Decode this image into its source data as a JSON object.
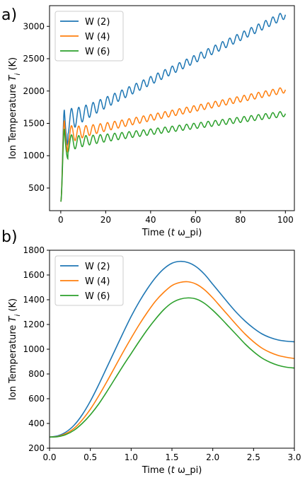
{
  "chart_data": [
    {
      "panel_label": "a)",
      "type": "line",
      "xlabel": "Time (t ω_pi)",
      "ylabel": "Ion Temperature T_i (K)",
      "xlim": [
        -5,
        104
      ],
      "ylim": [
        150,
        3320
      ],
      "xticks": [
        0,
        20,
        40,
        60,
        80,
        100
      ],
      "yticks": [
        500,
        1000,
        1500,
        2000,
        2500,
        3000
      ],
      "legend_position": "upper-left",
      "series": [
        {
          "name": "W (2)",
          "color": "#1f77b4",
          "T0": 290,
          "slope_end": 3180,
          "peak": 1710,
          "env": 1480,
          "osc": 170,
          "period": 3.2,
          "damp": 12
        },
        {
          "name": "W (4)",
          "color": "#ff7f0e",
          "T0": 290,
          "slope_end": 2020,
          "peak": 1545,
          "env": 1300,
          "osc": 130,
          "period": 3.2,
          "damp": 12
        },
        {
          "name": "W (6)",
          "color": "#2ca02c",
          "T0": 290,
          "slope_end": 1650,
          "peak": 1415,
          "env": 1180,
          "osc": 120,
          "period": 3.2,
          "damp": 12
        }
      ]
    },
    {
      "panel_label": "b)",
      "type": "line",
      "xlabel": "Time (t ω_pi)",
      "ylabel": "Ion Temperature T_i (K)",
      "xlim": [
        0,
        3.0
      ],
      "ylim": [
        200,
        1800
      ],
      "xticks": [
        0.0,
        0.5,
        1.0,
        1.5,
        2.0,
        2.5,
        3.0
      ],
      "yticks": [
        200,
        400,
        600,
        800,
        1000,
        1200,
        1400,
        1600,
        1800
      ],
      "legend_position": "upper-left",
      "series": [
        {
          "name": "W (2)",
          "color": "#1f77b4",
          "x": [
            0.0,
            0.1,
            0.2,
            0.3,
            0.4,
            0.5,
            0.6,
            0.7,
            0.8,
            0.9,
            1.0,
            1.1,
            1.2,
            1.3,
            1.4,
            1.5,
            1.6,
            1.7,
            1.8,
            1.9,
            2.0,
            2.1,
            2.2,
            2.3,
            2.4,
            2.5,
            2.6,
            2.7,
            2.8,
            2.9,
            3.0
          ],
          "y": [
            290,
            300,
            330,
            385,
            470,
            580,
            710,
            850,
            990,
            1130,
            1265,
            1385,
            1490,
            1580,
            1650,
            1695,
            1710,
            1700,
            1665,
            1605,
            1525,
            1445,
            1365,
            1290,
            1225,
            1170,
            1125,
            1095,
            1075,
            1065,
            1060
          ]
        },
        {
          "name": "W (4)",
          "color": "#ff7f0e",
          "x": [
            0.0,
            0.1,
            0.2,
            0.3,
            0.4,
            0.5,
            0.6,
            0.7,
            0.8,
            0.9,
            1.0,
            1.1,
            1.2,
            1.3,
            1.4,
            1.5,
            1.6,
            1.7,
            1.8,
            1.9,
            2.0,
            2.1,
            2.2,
            2.3,
            2.4,
            2.5,
            2.6,
            2.7,
            2.8,
            2.9,
            3.0
          ],
          "y": [
            290,
            295,
            318,
            360,
            428,
            515,
            620,
            735,
            855,
            975,
            1090,
            1200,
            1300,
            1390,
            1460,
            1515,
            1540,
            1545,
            1525,
            1480,
            1415,
            1340,
            1265,
            1190,
            1120,
            1060,
            1010,
            975,
            950,
            935,
            925
          ]
        },
        {
          "name": "W (6)",
          "color": "#2ca02c",
          "x": [
            0.0,
            0.1,
            0.2,
            0.3,
            0.4,
            0.5,
            0.6,
            0.7,
            0.8,
            0.9,
            1.0,
            1.1,
            1.2,
            1.3,
            1.4,
            1.5,
            1.6,
            1.7,
            1.8,
            1.9,
            2.0,
            2.1,
            2.2,
            2.3,
            2.4,
            2.5,
            2.6,
            2.7,
            2.8,
            2.9,
            3.0
          ],
          "y": [
            290,
            293,
            310,
            345,
            400,
            470,
            555,
            655,
            760,
            865,
            965,
            1065,
            1160,
            1245,
            1320,
            1375,
            1405,
            1415,
            1405,
            1370,
            1315,
            1250,
            1180,
            1110,
            1040,
            980,
            930,
            895,
            870,
            855,
            848
          ]
        }
      ]
    }
  ]
}
